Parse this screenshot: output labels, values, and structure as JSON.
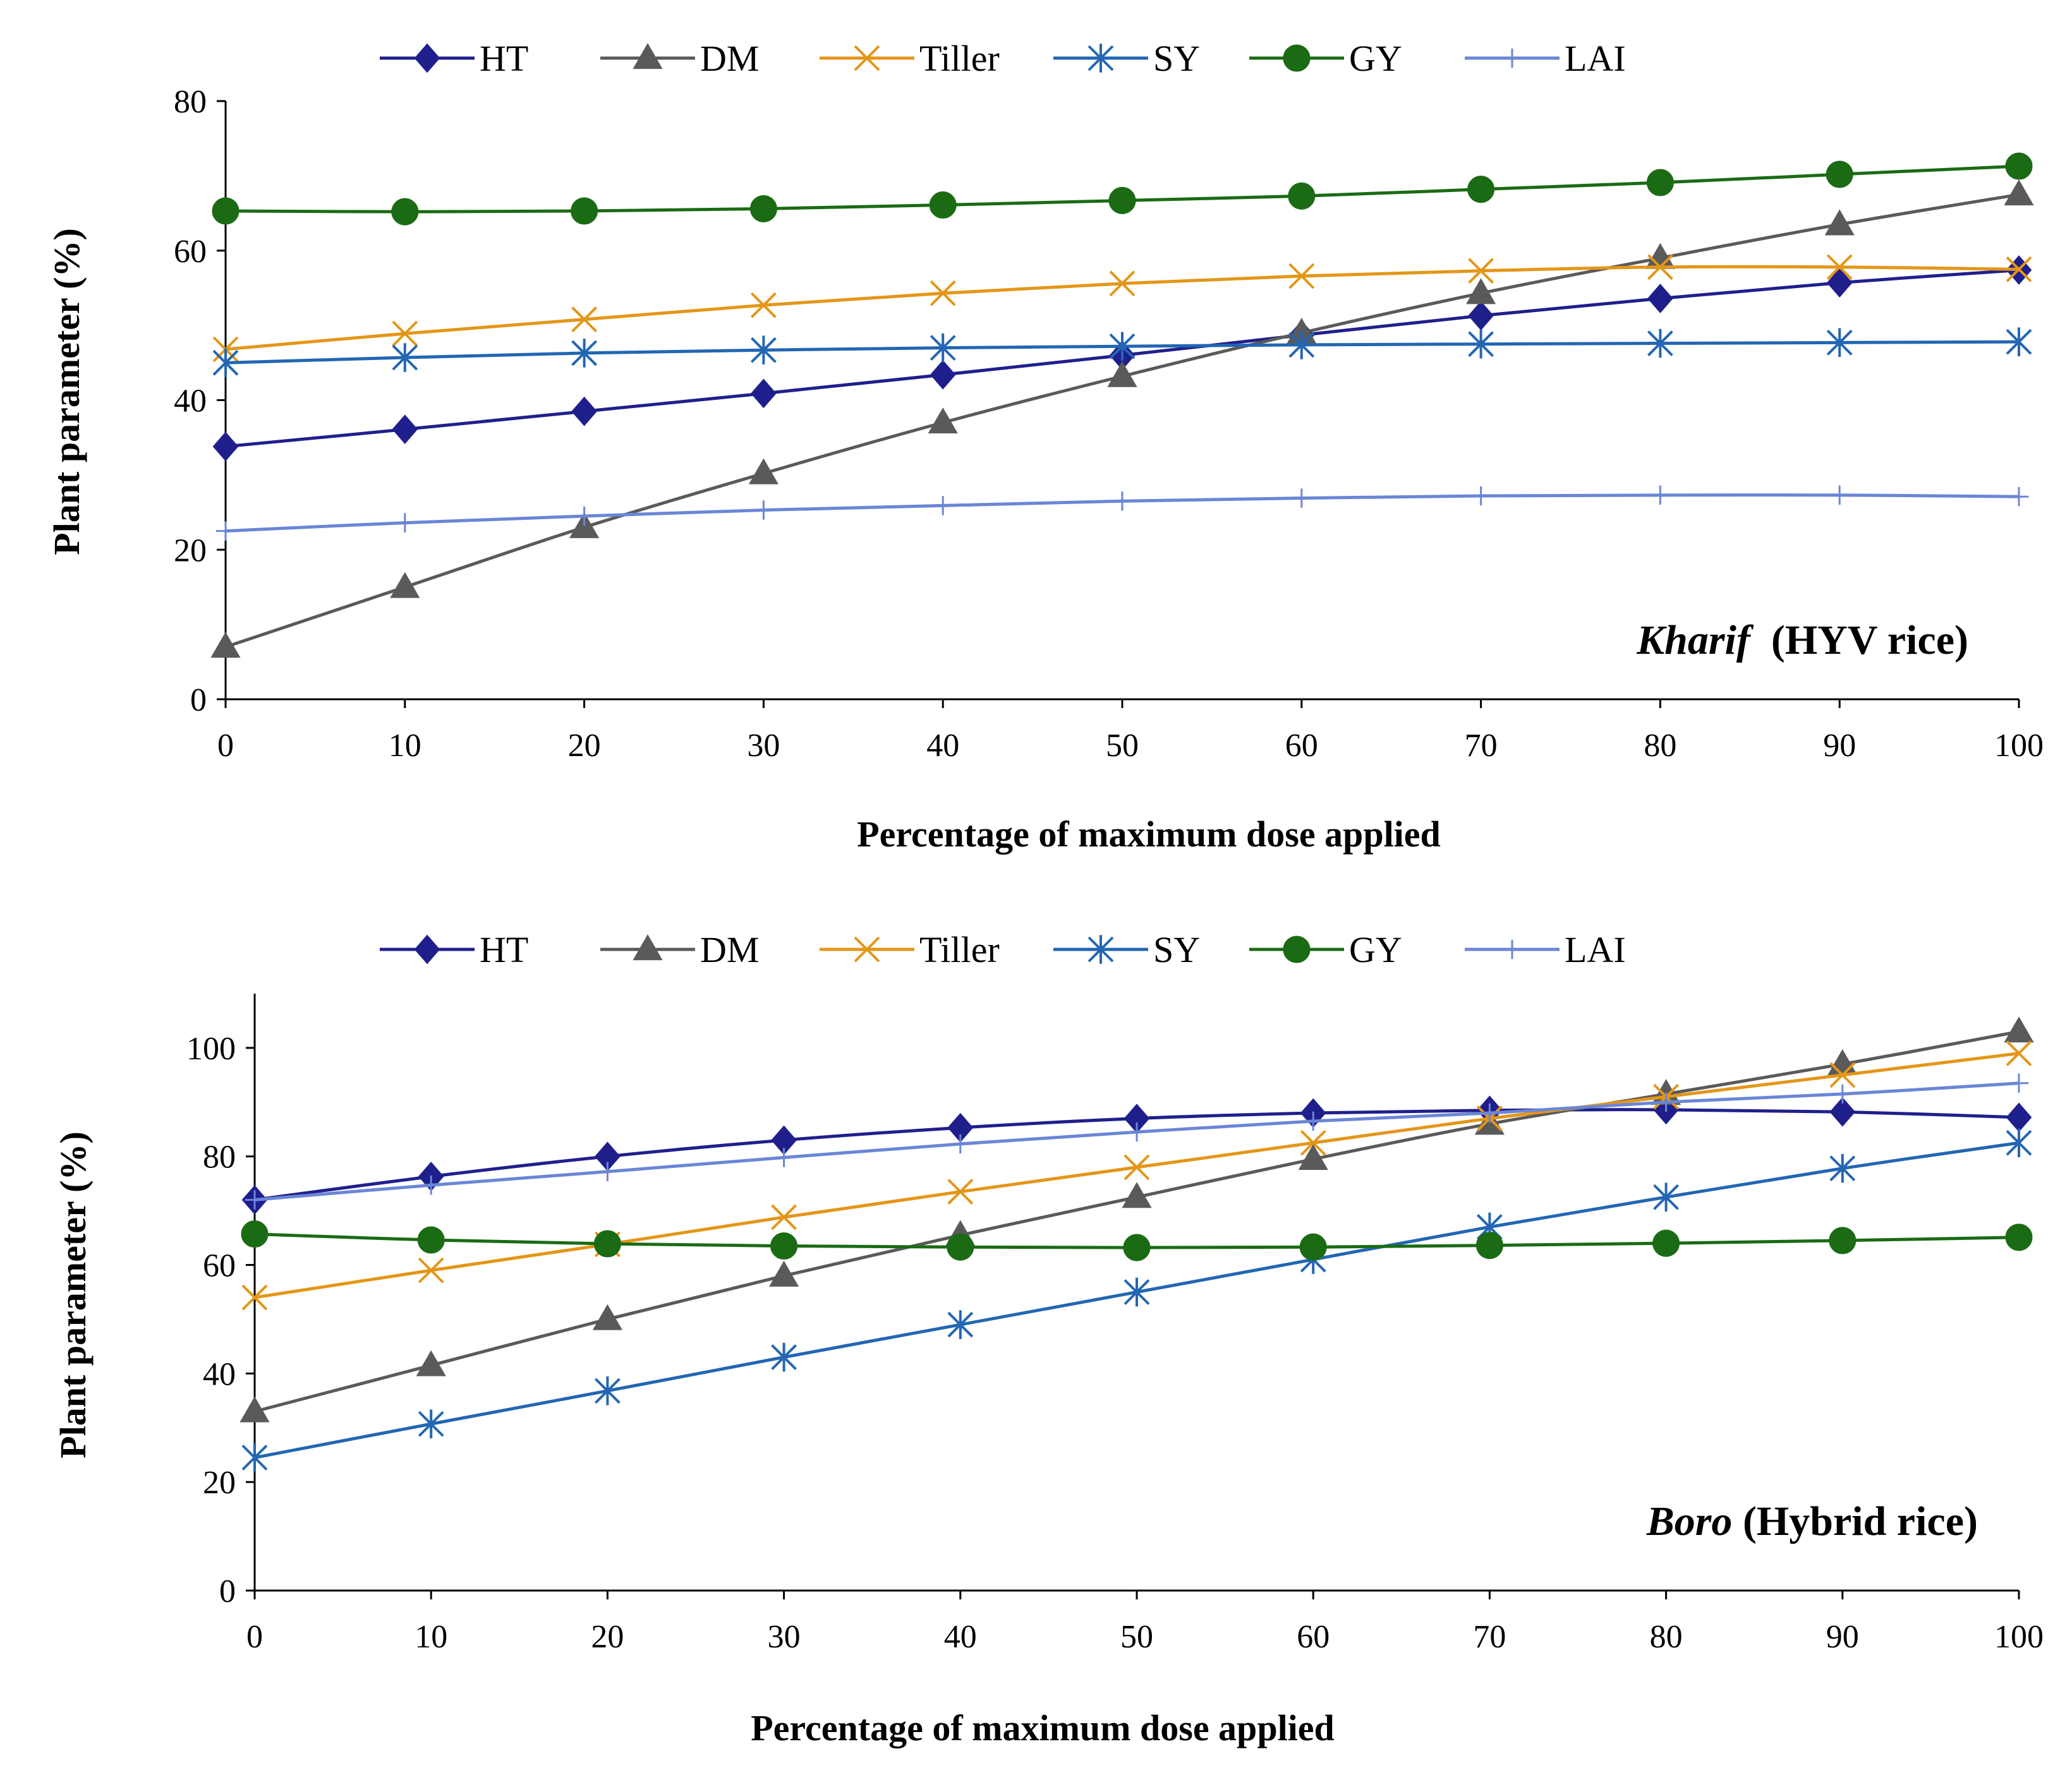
{
  "chart_data": [
    {
      "type": "line",
      "annotation": {
        "italic": "Kharif",
        "rest": "  (HYV rice)"
      },
      "xlabel": "Percentage  of maximum dose applied",
      "ylabel": "Plant parameter (%)",
      "x": [
        0,
        10,
        20,
        30,
        40,
        50,
        60,
        70,
        80,
        90,
        100
      ],
      "xticks": [
        0,
        10,
        20,
        30,
        40,
        50,
        60,
        70,
        80,
        90,
        100
      ],
      "yticks": [
        0,
        20,
        40,
        60,
        80
      ],
      "ylim": [
        0,
        80
      ],
      "legend_position": "top",
      "series": [
        {
          "name": "HT",
          "color": "#1f1f8c",
          "marker": "diamond",
          "values": [
            33.8,
            36.1,
            38.5,
            40.9,
            43.4,
            46.0,
            48.7,
            51.3,
            53.6,
            55.7,
            57.4
          ]
        },
        {
          "name": "DM",
          "color": "#5a5a5a",
          "marker": "triangle",
          "values": [
            7.0,
            15.0,
            23.0,
            30.2,
            37.0,
            43.2,
            49.0,
            54.3,
            59.0,
            63.5,
            67.5
          ]
        },
        {
          "name": "Tiller",
          "color": "#e39618",
          "marker": "x",
          "values": [
            46.8,
            48.9,
            50.8,
            52.7,
            54.3,
            55.6,
            56.6,
            57.3,
            57.8,
            57.8,
            57.5
          ]
        },
        {
          "name": "SY",
          "color": "#2366b3",
          "marker": "star",
          "values": [
            45.0,
            45.7,
            46.3,
            46.7,
            47.0,
            47.2,
            47.4,
            47.5,
            47.6,
            47.7,
            47.8
          ]
        },
        {
          "name": "GY",
          "color": "#1b6b14",
          "marker": "circle",
          "values": [
            65.3,
            65.2,
            65.3,
            65.6,
            66.1,
            66.7,
            67.3,
            68.2,
            69.1,
            70.2,
            71.3
          ]
        },
        {
          "name": "LAI",
          "color": "#6a86d6",
          "marker": "plus",
          "values": [
            22.5,
            23.6,
            24.5,
            25.3,
            25.9,
            26.5,
            26.9,
            27.2,
            27.3,
            27.3,
            27.1
          ]
        }
      ]
    },
    {
      "type": "line",
      "annotation": {
        "italic": "Boro",
        "rest": " (Hybrid rice)"
      },
      "xlabel": "Percentage  of maximum dose applied",
      "ylabel": "Plant parameter (%)",
      "x": [
        0,
        10,
        20,
        30,
        40,
        50,
        60,
        70,
        80,
        90,
        100
      ],
      "xticks": [
        0,
        10,
        20,
        30,
        40,
        50,
        60,
        70,
        80,
        90,
        100
      ],
      "yticks": [
        0,
        20,
        40,
        60,
        80,
        100
      ],
      "ylim": [
        0,
        110
      ],
      "legend_position": "top",
      "series": [
        {
          "name": "HT",
          "color": "#1f1f8c",
          "marker": "diamond",
          "values": [
            72.0,
            76.3,
            80.0,
            83.0,
            85.3,
            87.0,
            88.0,
            88.5,
            88.6,
            88.2,
            87.2
          ]
        },
        {
          "name": "DM",
          "color": "#5a5a5a",
          "marker": "triangle",
          "values": [
            33.0,
            41.5,
            50.0,
            58.0,
            65.5,
            72.5,
            79.5,
            86.0,
            91.5,
            97.0,
            103.0
          ]
        },
        {
          "name": "Tiller",
          "color": "#e39618",
          "marker": "x",
          "values": [
            54.0,
            59.0,
            63.8,
            68.8,
            73.5,
            78.0,
            82.5,
            87.0,
            91.0,
            95.0,
            99.0
          ]
        },
        {
          "name": "SY",
          "color": "#2366b3",
          "marker": "star",
          "values": [
            24.5,
            30.7,
            36.8,
            43.0,
            49.0,
            55.0,
            61.0,
            67.0,
            72.5,
            77.8,
            82.5
          ]
        },
        {
          "name": "GY",
          "color": "#1b6b14",
          "marker": "circle",
          "values": [
            65.7,
            64.6,
            63.9,
            63.5,
            63.3,
            63.2,
            63.3,
            63.6,
            64.0,
            64.5,
            65.1
          ]
        },
        {
          "name": "LAI",
          "color": "#6a86d6",
          "marker": "plus",
          "values": [
            72.0,
            74.7,
            77.2,
            79.8,
            82.3,
            84.5,
            86.5,
            88.0,
            90.0,
            91.5,
            93.5
          ]
        }
      ]
    }
  ]
}
